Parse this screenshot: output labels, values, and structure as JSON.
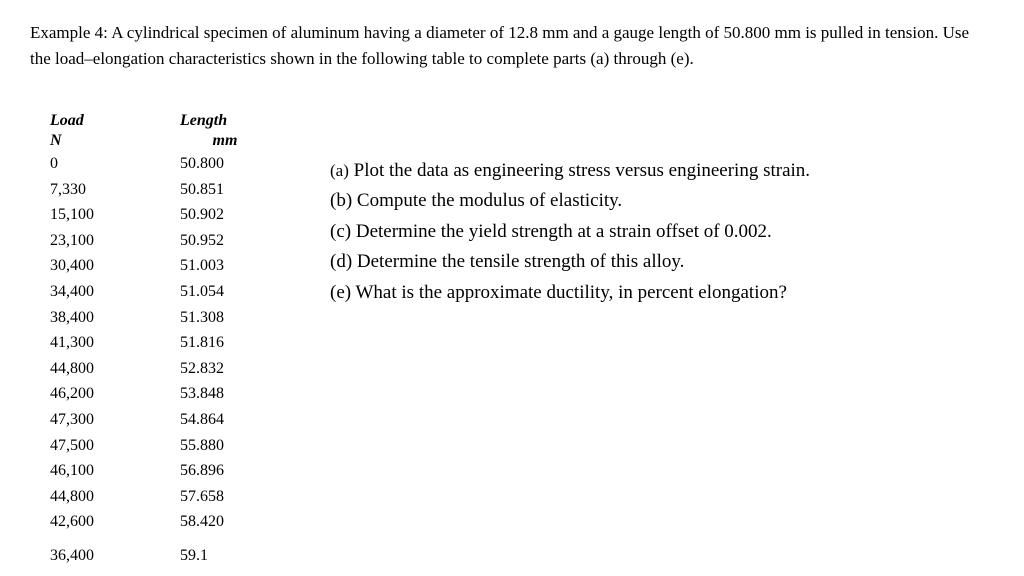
{
  "problem_statement": "Example 4: A cylindrical specimen of aluminum having a diameter of 12.8 mm and a gauge length of 50.800 mm is pulled in tension. Use the load–elongation characteristics shown in the following table to complete parts (a) through (e).",
  "table": {
    "headers": {
      "load": "Load",
      "length": "Length"
    },
    "units": {
      "load": "N",
      "length": "mm"
    },
    "rows": [
      {
        "load": "0",
        "length": "50.800"
      },
      {
        "load": "7,330",
        "length": "50.851"
      },
      {
        "load": "15,100",
        "length": "50.902"
      },
      {
        "load": "23,100",
        "length": "50.952"
      },
      {
        "load": "30,400",
        "length": "51.003"
      },
      {
        "load": "34,400",
        "length": "51.054"
      },
      {
        "load": "38,400",
        "length": "51.308"
      },
      {
        "load": "41,300",
        "length": "51.816"
      },
      {
        "load": "44,800",
        "length": "52.832"
      },
      {
        "load": "46,200",
        "length": "53.848"
      },
      {
        "load": "47,300",
        "length": "54.864"
      },
      {
        "load": "47,500",
        "length": "55.880"
      },
      {
        "load": "46,100",
        "length": "56.896"
      },
      {
        "load": "44,800",
        "length": "57.658"
      },
      {
        "load": "42,600",
        "length": "58.420"
      },
      {
        "load": "36,400",
        "length": "59.1"
      }
    ]
  },
  "questions": {
    "a": {
      "label": "(a)",
      "text": " Plot the data as engineering stress versus engineering strain."
    },
    "b": {
      "label": "(b)",
      "text": " Compute the modulus of elasticity."
    },
    "c": {
      "label": "(c)",
      "text": " Determine the yield strength at a strain offset of 0.002."
    },
    "d": {
      "label": "(d)",
      "text": " Determine the tensile strength of this alloy."
    },
    "e": {
      "label": "(e)",
      "text": " What is the approximate ductility, in percent elongation?"
    }
  },
  "styling": {
    "font_family": "Georgia, Times New Roman, serif",
    "background_color": "#ffffff",
    "text_color": "#000000",
    "problem_font_size": 17,
    "question_font_size": 19,
    "table_font_size": 16
  }
}
